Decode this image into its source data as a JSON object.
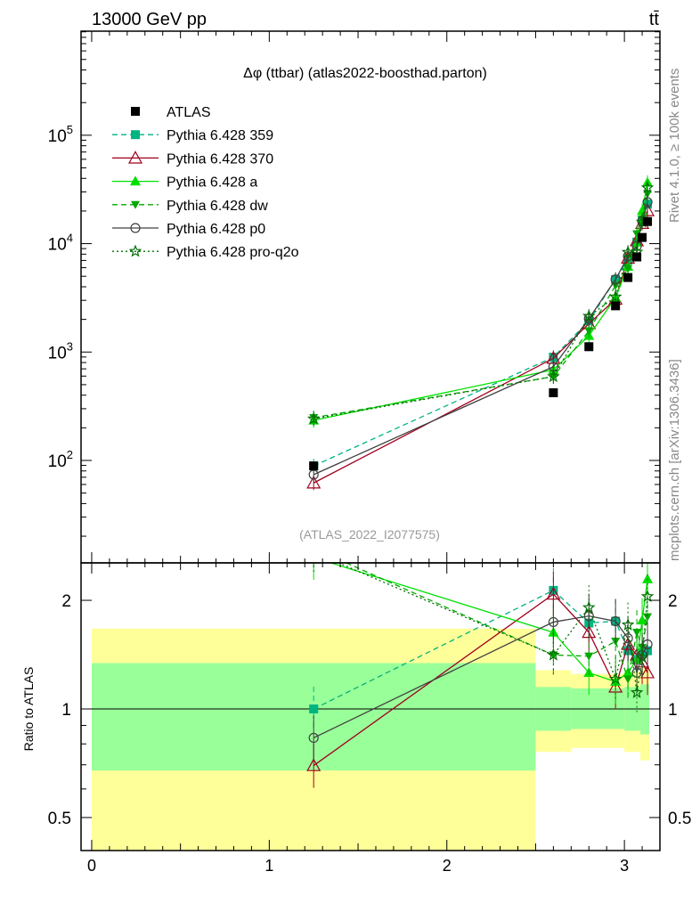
{
  "header": {
    "left": "13000 GeV pp",
    "right": "tt̄"
  },
  "side_text": {
    "top": "Rivet 4.1.0, ≥ 100k events",
    "bottom": "mcplots.cern.ch [arXiv:1306.3436]"
  },
  "analysis_id": "(ATLAS_2022_I2077575)",
  "chart_data": {
    "type": "line",
    "title": "Δφ (ttbar) (atlas2022-boosthad.parton)",
    "xlabel": "",
    "ylabel": "",
    "ratio_ylabel": "Ratio to ATLAS",
    "xlim": [
      -0.06,
      3.2
    ],
    "ylim": [
      11.35,
      912000
    ],
    "ylog": true,
    "ratio_ylim": [
      0.405,
      2.54
    ],
    "x_ticks": [
      "0",
      "1",
      "2",
      "3"
    ],
    "y_ticks": [
      {
        "base": "10",
        "exp": "2"
      },
      {
        "base": "10",
        "exp": "3"
      },
      {
        "base": "10",
        "exp": "4"
      },
      {
        "base": "10",
        "exp": "5"
      }
    ],
    "ratio_ticks": [
      "0.5",
      "1",
      "2"
    ],
    "legend_position": "top-left",
    "x": [
      1.25,
      2.6,
      2.8,
      2.95,
      3.02,
      3.07,
      3.1,
      3.13
    ],
    "reference": {
      "name": "ATLAS",
      "color": "#000000",
      "values": [
        89,
        421,
        1120,
        2670,
        4870,
        7540,
        11400,
        16000
      ]
    },
    "uncertainty_bands": [
      {
        "x": [
          0,
          2.5
        ],
        "yellow": [
          0.3,
          1.67
        ],
        "green": [
          0.675,
          1.34
        ]
      },
      {
        "x": [
          2.5,
          2.7
        ],
        "yellow": [
          0.76,
          1.28
        ],
        "green": [
          0.87,
          1.15
        ]
      },
      {
        "x": [
          2.7,
          3.0
        ],
        "yellow": [
          0.78,
          1.25
        ],
        "green": [
          0.88,
          1.14
        ]
      },
      {
        "x": [
          3.0,
          3.09
        ],
        "yellow": [
          0.76,
          1.27
        ],
        "green": [
          0.87,
          1.15
        ]
      },
      {
        "x": [
          3.09,
          3.14
        ],
        "yellow": [
          0.72,
          1.3
        ],
        "green": [
          0.85,
          1.17
        ]
      }
    ],
    "series": [
      {
        "name": "Pythia 6.428 359",
        "color": "#00b482",
        "dash": "6,4",
        "marker": "square",
        "values": [
          89,
          897,
          1938,
          4673,
          7062,
          10330,
          16300,
          23200
        ]
      },
      {
        "name": "Pythia 6.428 370",
        "color": "#a0001e",
        "dash": "",
        "marker": "triangle-open",
        "values": [
          62,
          876,
          1826,
          3071,
          7354,
          10630,
          15390,
          20160
        ]
      },
      {
        "name": "Pythia 6.428 a",
        "color": "#00e000",
        "dash": "",
        "marker": "triangle",
        "values": [
          234,
          686,
          1411,
          3177,
          6136,
          10330,
          20060,
          36640
        ]
      },
      {
        "name": "Pythia 6.428 dw",
        "color": "#00a800",
        "dash": "6,4",
        "marker": "triangle-down",
        "values": [
          248,
          594,
          1568,
          4112,
          5893,
          12290,
          16870,
          28800
        ]
      },
      {
        "name": "Pythia 6.428 p0",
        "color": "#404040",
        "dash": "",
        "marker": "circle-open",
        "values": [
          74,
          733,
          2027,
          4673,
          7646,
          9500,
          16070,
          24160
        ]
      },
      {
        "name": "Pythia 6.428 pro-q2o",
        "color": "#006e00",
        "dash": "2,3",
        "marker": "star",
        "values": [
          242,
          594,
          2139,
          3231,
          8328,
          8369,
          15850,
          32800
        ]
      }
    ]
  }
}
